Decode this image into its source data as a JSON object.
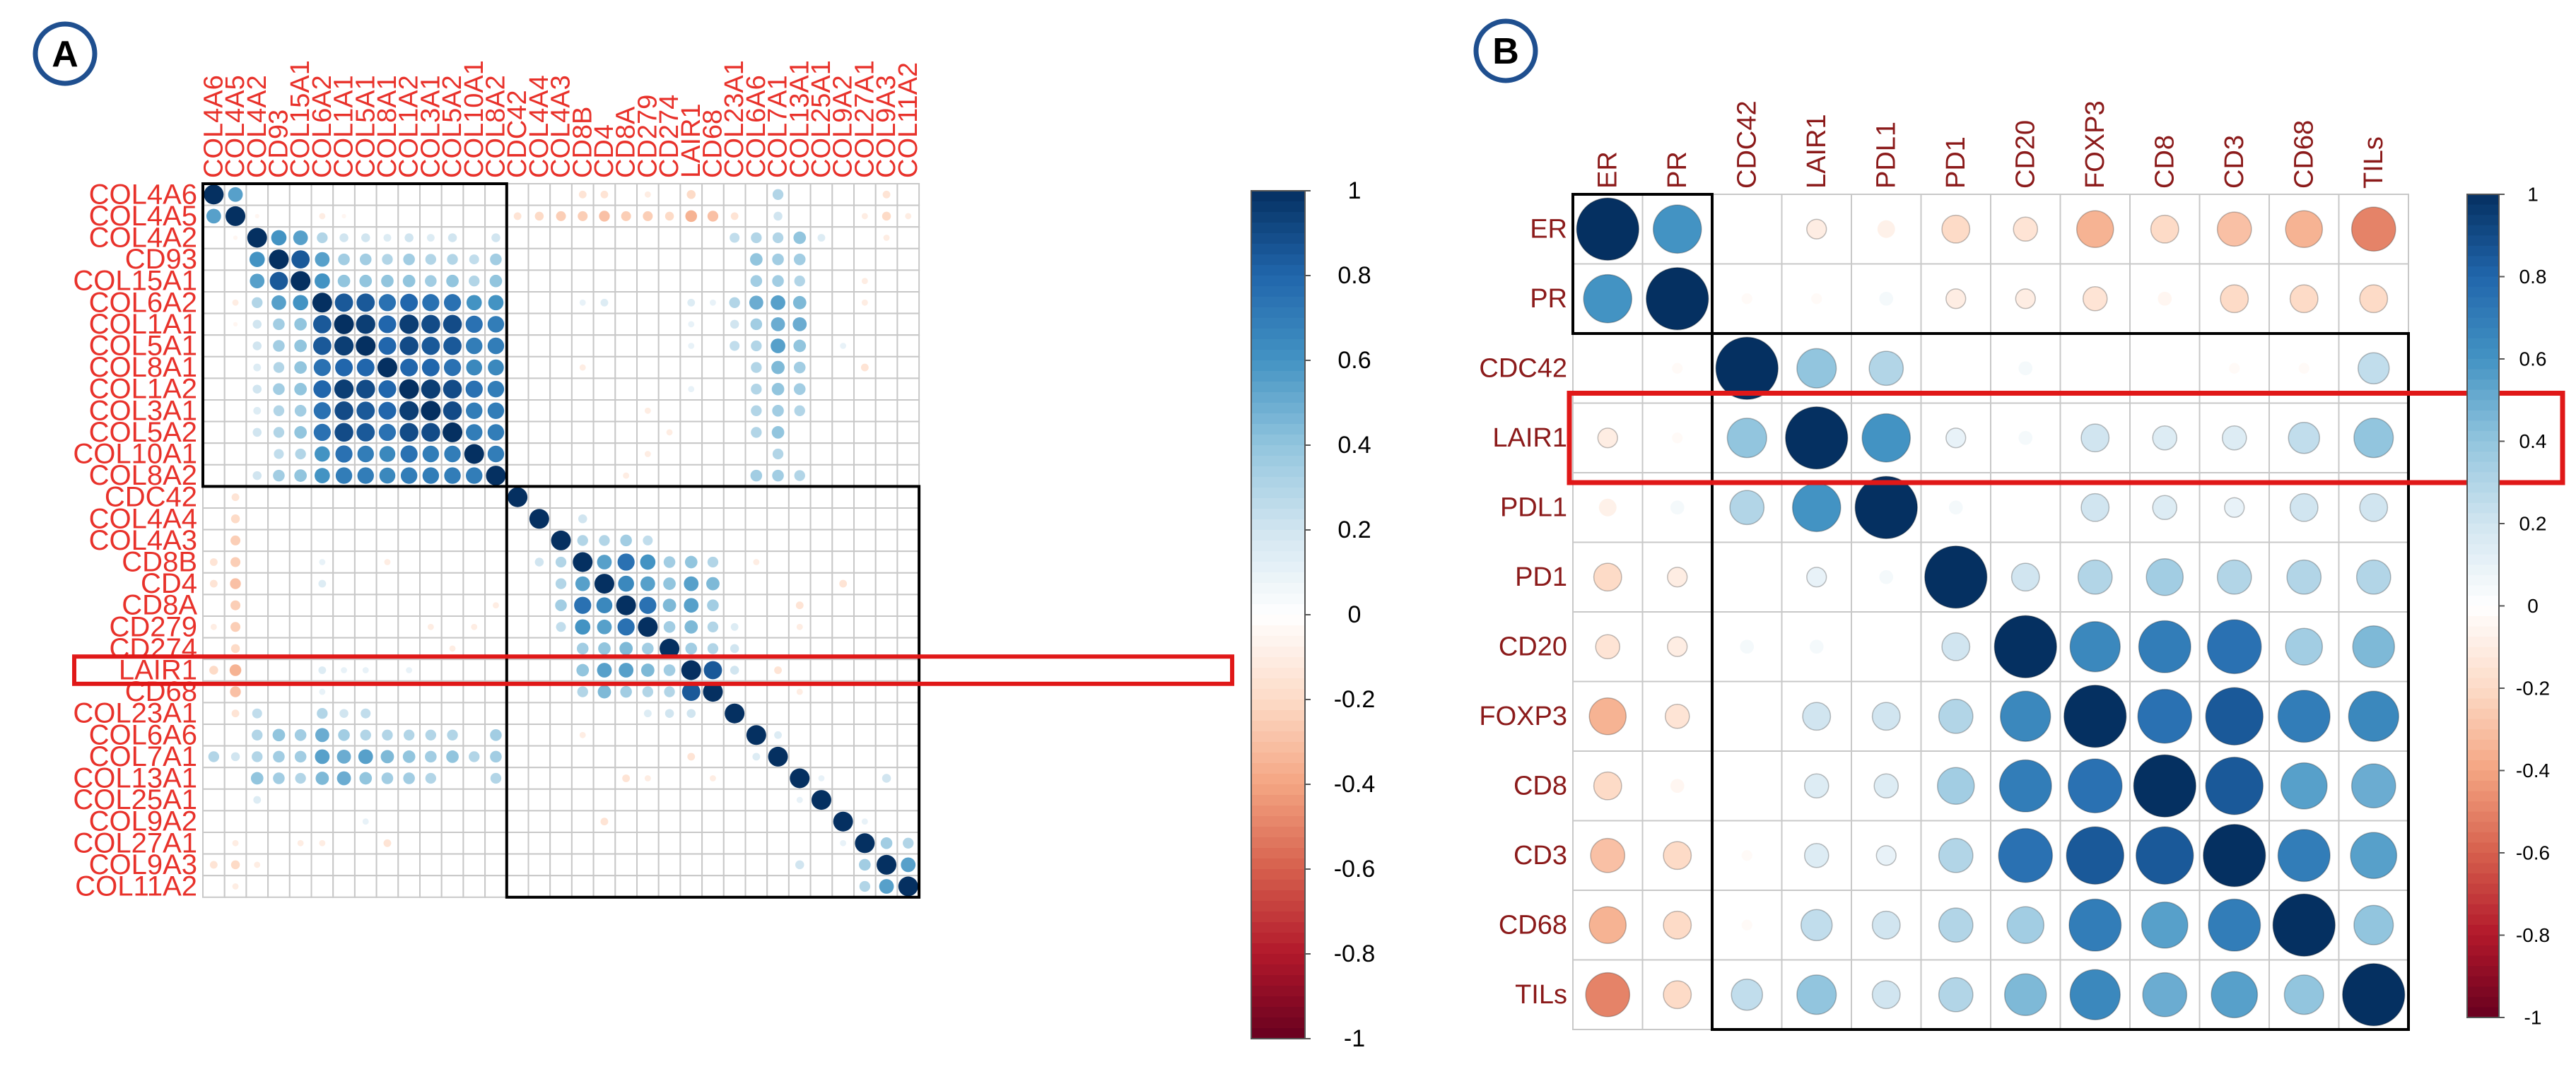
{
  "panels": [
    {
      "letter": "A",
      "colors": {
        "label": "#e8312a",
        "cell_border": "#c8c8c8",
        "highlight": "#e01818"
      }
    },
    {
      "letter": "B",
      "colors": {
        "label": "#8b1a1a",
        "cell_border": "#c8c8c8",
        "highlight": "#e01818"
      }
    }
  ],
  "colors": {
    "badge_border": "#1f4f8f",
    "group_box": "#000000"
  },
  "chart_data": [
    {
      "type": "heatmap",
      "title": "",
      "labels": [
        "COL4A6",
        "COL4A5",
        "COL4A2",
        "CD93",
        "COL15A1",
        "COL6A2",
        "COL1A1",
        "COL5A1",
        "COL8A1",
        "COL1A2",
        "COL3A1",
        "COL5A2",
        "COL10A1",
        "COL8A2",
        "CDC42",
        "COL4A4",
        "COL4A3",
        "CD8B",
        "CD4",
        "CD8A",
        "CD279",
        "CD274",
        "LAIR1",
        "CD68",
        "COL23A1",
        "COL6A6",
        "COL7A1",
        "COL13A1",
        "COL25A1",
        "COL9A2",
        "COL27A1",
        "COL9A3",
        "COL11A2"
      ],
      "groups": [
        [
          0,
          13
        ],
        [
          14,
          32
        ]
      ],
      "highlight_row": "LAIR1",
      "value_range": [
        -1,
        1
      ],
      "colorbar_ticks": [
        "1",
        "0.8",
        "0.6",
        "0.4",
        "0.2",
        "0",
        "-0.2",
        "-0.4",
        "-0.6",
        "-0.8",
        "-1"
      ],
      "corr_pairs": [
        [
          "COL4A6",
          "COL4A5",
          0.55
        ],
        [
          "COL4A5",
          "COL4A2",
          -0.05
        ],
        [
          "COL4A2",
          "CD93",
          0.6
        ],
        [
          "COL4A2",
          "COL15A1",
          0.55
        ],
        [
          "CD93",
          "COL15A1",
          0.85
        ],
        [
          "COL4A2",
          "COL6A2",
          0.3
        ],
        [
          "CD93",
          "COL6A2",
          0.55
        ],
        [
          "COL15A1",
          "COL6A2",
          0.6
        ],
        [
          "COL6A2",
          "COL1A1",
          0.85
        ],
        [
          "COL6A2",
          "COL5A1",
          0.85
        ],
        [
          "COL6A2",
          "COL8A1",
          0.75
        ],
        [
          "COL6A2",
          "COL1A2",
          0.8
        ],
        [
          "COL6A2",
          "COL3A1",
          0.75
        ],
        [
          "COL6A2",
          "COL5A2",
          0.75
        ],
        [
          "COL6A2",
          "COL10A1",
          0.6
        ],
        [
          "COL6A2",
          "COL8A2",
          0.6
        ],
        [
          "COL1A1",
          "COL5A1",
          0.95
        ],
        [
          "COL1A1",
          "COL8A1",
          0.8
        ],
        [
          "COL1A1",
          "COL1A2",
          0.95
        ],
        [
          "COL1A1",
          "COL3A1",
          0.9
        ],
        [
          "COL1A1",
          "COL5A2",
          0.9
        ],
        [
          "COL1A1",
          "COL10A1",
          0.75
        ],
        [
          "COL1A1",
          "COL8A2",
          0.7
        ],
        [
          "COL5A1",
          "COL8A1",
          0.8
        ],
        [
          "COL5A1",
          "COL1A2",
          0.9
        ],
        [
          "COL5A1",
          "COL3A1",
          0.85
        ],
        [
          "COL5A1",
          "COL5A2",
          0.85
        ],
        [
          "COL5A1",
          "COL10A1",
          0.7
        ],
        [
          "COL5A1",
          "COL8A2",
          0.7
        ],
        [
          "COL8A1",
          "COL1A2",
          0.8
        ],
        [
          "COL8A1",
          "COL3A1",
          0.8
        ],
        [
          "COL8A1",
          "COL5A2",
          0.75
        ],
        [
          "COL8A1",
          "COL10A1",
          0.65
        ],
        [
          "COL8A1",
          "COL8A2",
          0.65
        ],
        [
          "COL1A2",
          "COL3A1",
          0.95
        ],
        [
          "COL1A2",
          "COL5A2",
          0.9
        ],
        [
          "COL1A2",
          "COL10A1",
          0.75
        ],
        [
          "COL1A2",
          "COL8A2",
          0.7
        ],
        [
          "COL3A1",
          "COL5A2",
          0.9
        ],
        [
          "COL3A1",
          "COL10A1",
          0.7
        ],
        [
          "COL3A1",
          "COL8A2",
          0.7
        ],
        [
          "COL5A2",
          "COL10A1",
          0.7
        ],
        [
          "COL5A2",
          "COL8A2",
          0.7
        ],
        [
          "COL10A1",
          "COL8A2",
          0.7
        ],
        [
          "COL15A1",
          "COL1A1",
          0.4
        ],
        [
          "COL15A1",
          "COL5A1",
          0.4
        ],
        [
          "COL15A1",
          "COL8A1",
          0.4
        ],
        [
          "COL15A1",
          "COL1A2",
          0.4
        ],
        [
          "COL15A1",
          "COL3A1",
          0.35
        ],
        [
          "COL15A1",
          "COL5A2",
          0.4
        ],
        [
          "COL15A1",
          "COL10A1",
          0.3
        ],
        [
          "COL15A1",
          "COL8A2",
          0.4
        ],
        [
          "CD93",
          "COL1A1",
          0.35
        ],
        [
          "CD93",
          "COL5A1",
          0.35
        ],
        [
          "CD93",
          "COL8A1",
          0.3
        ],
        [
          "CD93",
          "COL1A2",
          0.35
        ],
        [
          "CD93",
          "COL3A1",
          0.3
        ],
        [
          "CD93",
          "COL5A2",
          0.3
        ],
        [
          "CD93",
          "COL10A1",
          0.25
        ],
        [
          "CD93",
          "COL8A2",
          0.35
        ],
        [
          "COL4A2",
          "COL1A1",
          0.2
        ],
        [
          "COL4A2",
          "COL5A1",
          0.2
        ],
        [
          "COL4A2",
          "COL8A1",
          0.15
        ],
        [
          "COL4A2",
          "COL1A2",
          0.2
        ],
        [
          "COL4A2",
          "COL3A1",
          0.15
        ],
        [
          "COL4A2",
          "COL5A2",
          0.2
        ],
        [
          "COL4A2",
          "COL8A2",
          0.2
        ],
        [
          "CD8B",
          "CD4",
          0.55
        ],
        [
          "CD8B",
          "CD8A",
          0.75
        ],
        [
          "CD8B",
          "CD279",
          0.6
        ],
        [
          "CD4",
          "CD8A",
          0.65
        ],
        [
          "CD4",
          "CD279",
          0.55
        ],
        [
          "CD8A",
          "CD279",
          0.75
        ],
        [
          "COL4A4",
          "CD8B",
          0.2
        ],
        [
          "COL4A3",
          "CD8B",
          0.3
        ],
        [
          "COL4A3",
          "CD4",
          0.3
        ],
        [
          "COL4A3",
          "CD8A",
          0.35
        ],
        [
          "COL4A3",
          "CD279",
          0.25
        ],
        [
          "CD8B",
          "CD274",
          0.35
        ],
        [
          "CD4",
          "CD274",
          0.4
        ],
        [
          "CD8A",
          "CD274",
          0.45
        ],
        [
          "CD279",
          "CD274",
          0.35
        ],
        [
          "CD8B",
          "LAIR1",
          0.4
        ],
        [
          "CD4",
          "LAIR1",
          0.55
        ],
        [
          "CD8A",
          "LAIR1",
          0.55
        ],
        [
          "CD279",
          "LAIR1",
          0.45
        ],
        [
          "CD274",
          "LAIR1",
          0.35
        ],
        [
          "CD8B",
          "CD68",
          0.3
        ],
        [
          "CD4",
          "CD68",
          0.45
        ],
        [
          "CD8A",
          "CD68",
          0.35
        ],
        [
          "CD279",
          "CD68",
          0.3
        ],
        [
          "CD274",
          "CD68",
          0.3
        ],
        [
          "LAIR1",
          "CD68",
          0.85
        ],
        [
          "CD279",
          "COL23A1",
          0.15
        ],
        [
          "CD274",
          "COL23A1",
          0.2
        ],
        [
          "LAIR1",
          "COL23A1",
          0.2
        ],
        [
          "COL4A5",
          "COL6A2",
          -0.1
        ],
        [
          "COL4A5",
          "COL1A1",
          -0.05
        ],
        [
          "COL4A5",
          "CDC42",
          -0.15
        ],
        [
          "COL4A5",
          "COL4A4",
          -0.2
        ],
        [
          "COL4A5",
          "COL4A3",
          -0.25
        ],
        [
          "COL4A5",
          "CD8B",
          -0.25
        ],
        [
          "COL4A5",
          "CD4",
          -0.3
        ],
        [
          "COL4A5",
          "CD8A",
          -0.25
        ],
        [
          "COL4A5",
          "CD279",
          -0.25
        ],
        [
          "COL4A5",
          "CD274",
          -0.2
        ],
        [
          "COL4A5",
          "LAIR1",
          -0.35
        ],
        [
          "COL4A5",
          "CD68",
          -0.3
        ],
        [
          "COL4A5",
          "COL23A1",
          -0.15
        ],
        [
          "COL4A5",
          "COL27A1",
          -0.1
        ],
        [
          "COL4A5",
          "COL9A3",
          -0.2
        ],
        [
          "COL4A5",
          "COL11A2",
          -0.1
        ],
        [
          "COL4A6",
          "CD8B",
          -0.15
        ],
        [
          "COL4A6",
          "CD4",
          -0.15
        ],
        [
          "COL4A6",
          "LAIR1",
          -0.2
        ],
        [
          "COL4A6",
          "CD279",
          -0.1
        ],
        [
          "COL4A6",
          "COL9A3",
          -0.15
        ],
        [
          "COL6A2",
          "CD8B",
          0.1
        ],
        [
          "COL6A2",
          "CD4",
          0.15
        ],
        [
          "COL6A2",
          "LAIR1",
          0.15
        ],
        [
          "COL6A2",
          "CD68",
          0.1
        ],
        [
          "COL1A1",
          "LAIR1",
          0.1
        ],
        [
          "COL5A1",
          "LAIR1",
          0.1
        ],
        [
          "COL1A2",
          "LAIR1",
          0.1
        ],
        [
          "COL8A1",
          "CD8B",
          -0.1
        ],
        [
          "COL10A1",
          "CD279",
          -0.1
        ],
        [
          "COL8A2",
          "CD8A",
          -0.1
        ],
        [
          "COL3A1",
          "CD279",
          -0.1
        ],
        [
          "COL5A2",
          "CD274",
          -0.1
        ],
        [
          "COL4A2",
          "COL6A6",
          0.3
        ],
        [
          "CD93",
          "COL6A6",
          0.4
        ],
        [
          "COL15A1",
          "COL6A6",
          0.35
        ],
        [
          "COL6A2",
          "COL6A6",
          0.5
        ],
        [
          "COL1A1",
          "COL6A6",
          0.35
        ],
        [
          "COL5A1",
          "COL6A6",
          0.3
        ],
        [
          "COL8A1",
          "COL6A6",
          0.3
        ],
        [
          "COL1A2",
          "COL6A6",
          0.3
        ],
        [
          "COL3A1",
          "COL6A6",
          0.3
        ],
        [
          "COL5A2",
          "COL6A6",
          0.3
        ],
        [
          "COL8A2",
          "COL6A6",
          0.35
        ],
        [
          "COL4A6",
          "COL7A1",
          0.3
        ],
        [
          "COL4A5",
          "COL7A1",
          0.2
        ],
        [
          "COL4A2",
          "COL7A1",
          0.3
        ],
        [
          "CD93",
          "COL7A1",
          0.35
        ],
        [
          "COL15A1",
          "COL7A1",
          0.35
        ],
        [
          "COL6A2",
          "COL7A1",
          0.55
        ],
        [
          "COL1A1",
          "COL7A1",
          0.5
        ],
        [
          "COL5A1",
          "COL7A1",
          0.55
        ],
        [
          "COL8A1",
          "COL7A1",
          0.45
        ],
        [
          "COL1A2",
          "COL7A1",
          0.4
        ],
        [
          "COL3A1",
          "COL7A1",
          0.35
        ],
        [
          "COL5A2",
          "COL7A1",
          0.4
        ],
        [
          "COL10A1",
          "COL7A1",
          0.3
        ],
        [
          "COL8A2",
          "COL7A1",
          0.35
        ],
        [
          "COL4A2",
          "COL13A1",
          0.4
        ],
        [
          "CD93",
          "COL13A1",
          0.35
        ],
        [
          "COL15A1",
          "COL13A1",
          0.3
        ],
        [
          "COL6A2",
          "COL13A1",
          0.45
        ],
        [
          "COL1A1",
          "COL13A1",
          0.5
        ],
        [
          "COL5A1",
          "COL13A1",
          0.4
        ],
        [
          "COL8A1",
          "COL13A1",
          0.35
        ],
        [
          "COL1A2",
          "COL13A1",
          0.35
        ],
        [
          "COL3A1",
          "COL13A1",
          0.3
        ],
        [
          "COL8A2",
          "COL13A1",
          0.3
        ],
        [
          "COL4A2",
          "COL23A1",
          0.25
        ],
        [
          "COL6A2",
          "COL23A1",
          0.3
        ],
        [
          "COL1A1",
          "COL23A1",
          0.2
        ],
        [
          "COL5A1",
          "COL23A1",
          0.25
        ],
        [
          "COL8A1",
          "COL27A1",
          -0.15
        ],
        [
          "COL15A1",
          "COL27A1",
          -0.1
        ],
        [
          "COL6A2",
          "COL27A1",
          -0.1
        ],
        [
          "COL4A2",
          "COL25A1",
          0.15
        ],
        [
          "COL5A1",
          "COL9A2",
          0.1
        ],
        [
          "COL4A2",
          "COL9A3",
          -0.1
        ],
        [
          "CD8A",
          "COL13A1",
          -0.15
        ],
        [
          "CD279",
          "COL13A1",
          -0.1
        ],
        [
          "CD8B",
          "COL6A6",
          -0.1
        ],
        [
          "LAIR1",
          "COL7A1",
          -0.15
        ],
        [
          "CD68",
          "COL13A1",
          -0.1
        ],
        [
          "CD4",
          "COL9A2",
          -0.15
        ],
        [
          "COL6A6",
          "COL7A1",
          0.15
        ],
        [
          "COL13A1",
          "COL25A1",
          0.1
        ],
        [
          "COL9A2",
          "COL27A1",
          0.1
        ],
        [
          "COL27A1",
          "COL9A3",
          0.35
        ],
        [
          "COL27A1",
          "COL11A2",
          0.3
        ],
        [
          "COL9A3",
          "COL11A2",
          0.55
        ],
        [
          "COL13A1",
          "COL9A3",
          0.2
        ]
      ]
    },
    {
      "type": "heatmap",
      "title": "",
      "labels": [
        "ER",
        "PR",
        "CDC42",
        "LAIR1",
        "PDL1",
        "PD1",
        "CD20",
        "FOXP3",
        "CD8",
        "CD3",
        "CD68",
        "TILs"
      ],
      "groups": [
        [
          0,
          1
        ],
        [
          2,
          11
        ]
      ],
      "highlight_row": "LAIR1",
      "value_range": [
        -1,
        1
      ],
      "colorbar_ticks": [
        "1",
        "0.8",
        "0.6",
        "0.4",
        "0.2",
        "0",
        "-0.2",
        "-0.4",
        "-0.6",
        "-0.8",
        "-1"
      ],
      "matrix": [
        [
          1,
          0.6,
          0,
          -0.1,
          -0.08,
          -0.2,
          -0.15,
          -0.35,
          -0.2,
          -0.3,
          -0.35,
          -0.5
        ],
        [
          0.6,
          1,
          -0.03,
          -0.03,
          0.05,
          -0.1,
          -0.1,
          -0.15,
          -0.05,
          -0.2,
          -0.2,
          -0.2
        ],
        [
          0,
          -0.03,
          1,
          0.4,
          0.3,
          0,
          0.05,
          0,
          0,
          -0.03,
          -0.03,
          0.25
        ],
        [
          -0.1,
          -0.03,
          0.4,
          1,
          0.6,
          0.1,
          0.05,
          0.2,
          0.15,
          0.15,
          0.25,
          0.4
        ],
        [
          -0.08,
          0.05,
          0.3,
          0.6,
          1,
          0.05,
          0,
          0.2,
          0.15,
          0.1,
          0.2,
          0.2
        ],
        [
          -0.2,
          -0.1,
          0,
          0.1,
          0.05,
          1,
          0.2,
          0.3,
          0.35,
          0.3,
          0.3,
          0.3
        ],
        [
          -0.15,
          -0.1,
          0.05,
          0.05,
          0,
          0.2,
          1,
          0.65,
          0.7,
          0.75,
          0.35,
          0.45
        ],
        [
          -0.35,
          -0.15,
          0,
          0.2,
          0.2,
          0.3,
          0.65,
          1,
          0.75,
          0.85,
          0.7,
          0.65
        ],
        [
          -0.2,
          -0.05,
          0,
          0.15,
          0.15,
          0.35,
          0.7,
          0.75,
          1,
          0.85,
          0.55,
          0.5
        ],
        [
          -0.3,
          -0.2,
          -0.03,
          0.15,
          0.1,
          0.3,
          0.75,
          0.85,
          0.85,
          1,
          0.7,
          0.55
        ],
        [
          -0.35,
          -0.2,
          -0.03,
          0.25,
          0.2,
          0.3,
          0.35,
          0.7,
          0.55,
          0.7,
          1,
          0.4
        ],
        [
          -0.5,
          -0.2,
          0.25,
          0.4,
          0.2,
          0.3,
          0.45,
          0.65,
          0.5,
          0.55,
          0.4,
          1
        ]
      ]
    }
  ]
}
